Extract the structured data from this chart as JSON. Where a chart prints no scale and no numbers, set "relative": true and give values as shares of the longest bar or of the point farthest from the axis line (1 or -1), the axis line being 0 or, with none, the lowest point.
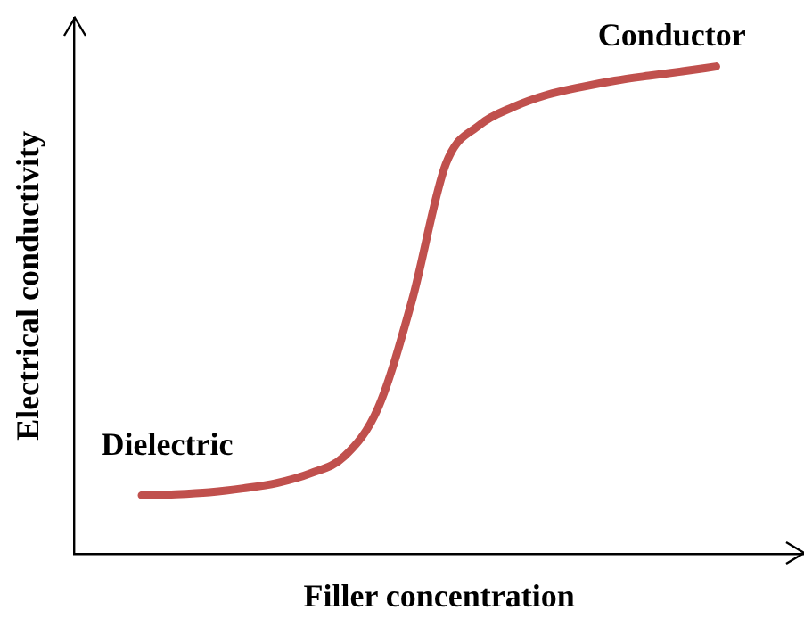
{
  "chart_data": {
    "type": "line",
    "xlabel": "Filler concentration",
    "ylabel": "Electrical conductivity",
    "relative": true,
    "categories": [
      null,
      null,
      null,
      null,
      null,
      null,
      null,
      null,
      null,
      null,
      null,
      null,
      null,
      null,
      null,
      null,
      null,
      null
    ],
    "series": [
      {
        "color": "#c0504d",
        "values": [
          0.12,
          0.122,
          0.126,
          0.134,
          0.145,
          0.165,
          0.2,
          0.3,
          0.52,
          0.8,
          0.88,
          0.917,
          0.942,
          0.958,
          0.971,
          0.981,
          0.99,
          1
        ]
      }
    ],
    "annotations": [
      "Conductor",
      "Dielectric"
    ],
    "marker": "none",
    "legend": false
  }
}
